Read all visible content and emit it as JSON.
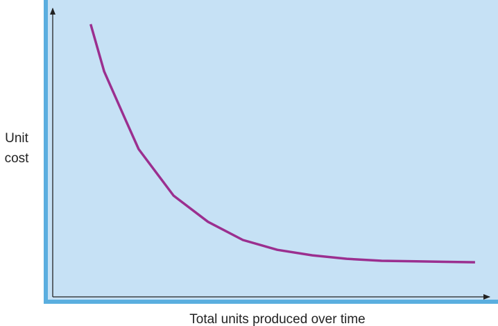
{
  "chart_data": {
    "type": "line",
    "xlabel": "Total units produced over time",
    "ylabel": [
      "Unit",
      "cost"
    ],
    "x": [
      8.7,
      11.8,
      16.5,
      19.7,
      27.7,
      35.6,
      43.6,
      51.5,
      59.5,
      67.4,
      75.4,
      83.3,
      96.8
    ],
    "values": [
      94.5,
      78.1,
      62.0,
      51.2,
      35.1,
      26.0,
      19.7,
      16.3,
      14.4,
      13.2,
      12.5,
      12.3,
      12.0
    ],
    "color": "#9b2f8f",
    "xlim": [
      0,
      100
    ],
    "ylim": [
      0,
      100
    ]
  }
}
